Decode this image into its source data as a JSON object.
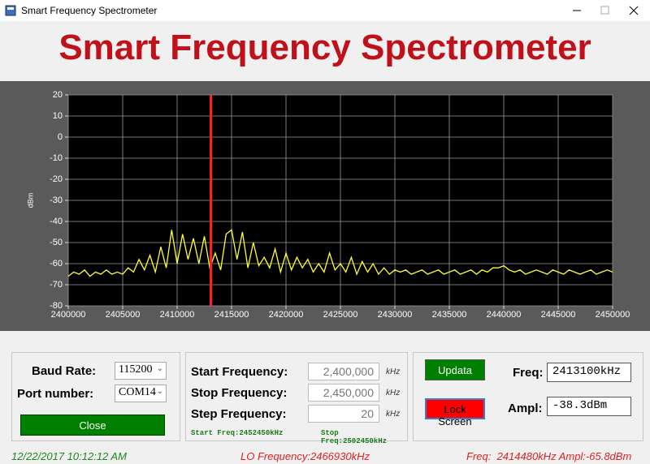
{
  "window": {
    "title": "Smart Frequency Spectrometer"
  },
  "header": {
    "title": "Smart Frequency Spectrometer"
  },
  "chart_data": {
    "type": "line",
    "y_label": "dBm",
    "color": "#ffff33",
    "xlim": [
      2400000,
      2450000
    ],
    "ylim": [
      -80,
      20
    ],
    "xticks": [
      2400000,
      2405000,
      2410000,
      2415000,
      2420000,
      2425000,
      2430000,
      2435000,
      2440000,
      2445000,
      2450000
    ],
    "yticks": [
      -80,
      -70,
      -60,
      -50,
      -40,
      -30,
      -20,
      -10,
      0,
      10,
      20
    ],
    "grid": true,
    "cursor": 2413100,
    "cursor_color": "#ff2020",
    "x": [
      2400000,
      2400500,
      2401000,
      2401500,
      2402000,
      2402500,
      2403000,
      2403500,
      2404000,
      2404500,
      2405000,
      2405500,
      2406000,
      2406500,
      2407000,
      2407500,
      2408000,
      2408500,
      2409000,
      2409500,
      2410000,
      2410500,
      2411000,
      2411500,
      2412000,
      2412500,
      2413000,
      2413500,
      2414000,
      2414500,
      2415000,
      2415500,
      2416000,
      2416500,
      2417000,
      2417500,
      2418000,
      2418500,
      2419000,
      2419500,
      2420000,
      2420500,
      2421000,
      2421500,
      2422000,
      2422500,
      2423000,
      2423500,
      2424000,
      2424500,
      2425000,
      2425500,
      2426000,
      2426500,
      2427000,
      2427500,
      2428000,
      2428500,
      2429000,
      2429500,
      2430000,
      2430500,
      2431000,
      2431500,
      2432000,
      2432500,
      2433000,
      2433500,
      2434000,
      2434500,
      2435000,
      2435500,
      2436000,
      2436500,
      2437000,
      2437500,
      2438000,
      2438500,
      2439000,
      2439500,
      2440000,
      2440500,
      2441000,
      2441500,
      2442000,
      2442500,
      2443000,
      2443500,
      2444000,
      2444500,
      2445000,
      2445500,
      2446000,
      2446500,
      2447000,
      2447500,
      2448000,
      2448500,
      2449000,
      2449500,
      2450000
    ],
    "values": [
      -66,
      -64,
      -65,
      -63,
      -66,
      -64,
      -65,
      -63,
      -65,
      -64,
      -65,
      -62,
      -64,
      -58,
      -63,
      -56,
      -64,
      -52,
      -62,
      -44,
      -60,
      -46,
      -58,
      -48,
      -60,
      -47,
      -62,
      -55,
      -63,
      -46,
      -44,
      -58,
      -45,
      -62,
      -50,
      -61,
      -57,
      -62,
      -53,
      -64,
      -55,
      -63,
      -57,
      -62,
      -58,
      -64,
      -60,
      -64,
      -55,
      -63,
      -60,
      -64,
      -57,
      -65,
      -59,
      -64,
      -60,
      -65,
      -62,
      -65,
      -63,
      -64,
      -63,
      -65,
      -64,
      -63,
      -65,
      -64,
      -63,
      -65,
      -64,
      -63,
      -65,
      -64,
      -63,
      -65,
      -63,
      -64,
      -62,
      -62,
      -61,
      -63,
      -64,
      -63,
      -65,
      -64,
      -63,
      -64,
      -65,
      -63,
      -64,
      -65,
      -63,
      -64,
      -65,
      -64,
      -63,
      -65,
      -64,
      -63,
      -64
    ]
  },
  "serial": {
    "baud_label": "Baud Rate:",
    "baud_value": "115200",
    "port_label": "Port number:",
    "port_value": "COM14",
    "close_button": "Close"
  },
  "sweep": {
    "rows": [
      {
        "label": "Start Frequency:",
        "value": "2,400,000",
        "unit": "kHz"
      },
      {
        "label": "Stop Frequency:",
        "value": "2,450,000",
        "unit": "kHz"
      },
      {
        "label": "Step Frequency:",
        "value": "20",
        "unit": "kHz"
      }
    ],
    "start_freq": "Start Freq:2452450kHz",
    "stop_freq": "Stop Freq:2502450kHz"
  },
  "measure": {
    "update_button": "Updata",
    "lock_button": "Lock Screen",
    "freq_label": "Freq:",
    "freq_value": "2413100kHz",
    "ampl_label": "Ampl:",
    "ampl_value": "-38.3dBm"
  },
  "status": {
    "datetime": "12/22/2017 10:12:12 AM",
    "lo": "LO Frequency:2466930kHz",
    "reading": "Freq:  2414480kHz Ampl:-65.8dBm"
  }
}
